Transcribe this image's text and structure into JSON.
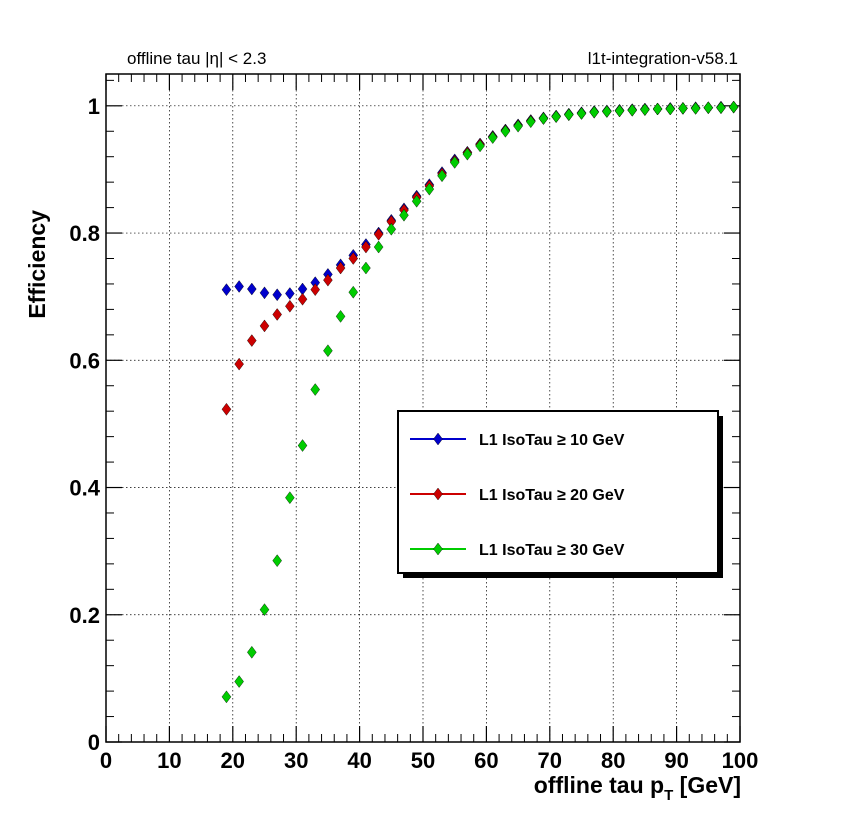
{
  "header": {
    "left_text": "offline tau |η| < 2.3",
    "right_text": "l1t-integration-v58.1"
  },
  "chart_data": {
    "type": "scatter",
    "xlabel": "offline tau p",
    "xlabel_sub": "T",
    "xlabel_unit": " [GeV]",
    "ylabel": "Efficiency",
    "xlim": [
      0,
      100
    ],
    "ylim": [
      0,
      1.05
    ],
    "xticks": [
      0,
      10,
      20,
      30,
      40,
      50,
      60,
      70,
      80,
      90,
      100
    ],
    "yticks": [
      0,
      0.2,
      0.4,
      0.6,
      0.8,
      1
    ],
    "ytick_labels": [
      "0",
      "0.2",
      "0.4",
      "0.6",
      "0.8",
      "1"
    ],
    "grid": true,
    "legend_position": "center-right",
    "x": [
      19,
      21,
      23,
      25,
      27,
      29,
      31,
      33,
      35,
      37,
      39,
      41,
      43,
      45,
      47,
      49,
      51,
      53,
      55,
      57,
      59,
      61,
      63,
      65,
      67,
      69,
      71,
      73,
      75,
      77,
      79,
      81,
      83,
      85,
      87,
      89,
      91,
      93,
      95,
      97,
      99
    ],
    "series": [
      {
        "name": "L1 IsoTau ≥ 10 GeV",
        "color": "#0000cc",
        "values": [
          0.711,
          0.716,
          0.712,
          0.706,
          0.703,
          0.705,
          0.712,
          0.722,
          0.735,
          0.75,
          0.765,
          0.782,
          0.8,
          0.82,
          0.838,
          0.858,
          0.876,
          0.895,
          0.915,
          0.927,
          0.94,
          0.952,
          0.962,
          0.97,
          0.977,
          0.981,
          0.984,
          0.987,
          0.989,
          0.991,
          0.992,
          0.993,
          0.994,
          0.995,
          0.995,
          0.996,
          0.996,
          0.997,
          0.997,
          0.998,
          0.998
        ]
      },
      {
        "name": "L1 IsoTau ≥ 20 GeV",
        "color": "#cc0000",
        "values": [
          0.523,
          0.594,
          0.631,
          0.654,
          0.672,
          0.685,
          0.696,
          0.711,
          0.726,
          0.745,
          0.76,
          0.778,
          0.798,
          0.818,
          0.836,
          0.856,
          0.874,
          0.893,
          0.913,
          0.926,
          0.939,
          0.951,
          0.961,
          0.969,
          0.976,
          0.98,
          0.983,
          0.986,
          0.988,
          0.99,
          0.991,
          0.992,
          0.993,
          0.994,
          0.995,
          0.995,
          0.996,
          0.996,
          0.997,
          0.997,
          0.998
        ]
      },
      {
        "name": "L1 IsoTau ≥ 30 GeV",
        "color": "#00cc00",
        "values": [
          0.071,
          0.095,
          0.141,
          0.208,
          0.285,
          0.384,
          0.466,
          0.554,
          0.615,
          0.669,
          0.707,
          0.745,
          0.778,
          0.806,
          0.828,
          0.85,
          0.869,
          0.89,
          0.911,
          0.924,
          0.937,
          0.95,
          0.96,
          0.968,
          0.975,
          0.98,
          0.983,
          0.986,
          0.988,
          0.99,
          0.991,
          0.992,
          0.993,
          0.994,
          0.995,
          0.995,
          0.996,
          0.996,
          0.997,
          0.997,
          0.998
        ]
      }
    ]
  }
}
